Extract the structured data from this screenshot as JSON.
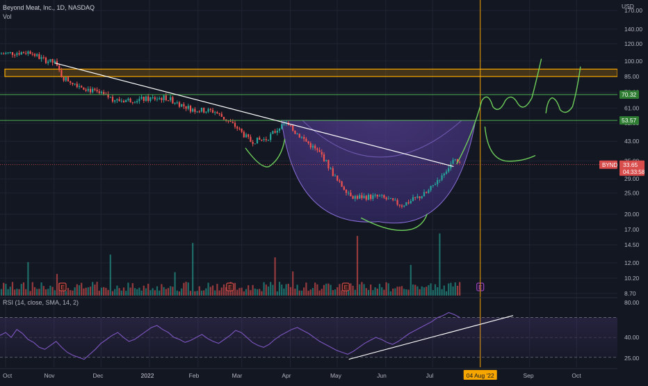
{
  "header": {
    "symbol_line": "Beyond Meat, Inc., 1D, NASDAQ",
    "volume_label": "Vol",
    "rsi_label": "RSI (14, close, SMA, 14, 2)"
  },
  "price_axis": {
    "currency": "USD",
    "ticks": [
      "170.00",
      "140.00",
      "120.00",
      "100.00",
      "85.00",
      "72.00",
      "61.00",
      "52.00",
      "43.00",
      "35.00",
      "29.00",
      "25.00",
      "20.00",
      "17.00",
      "14.50",
      "12.00",
      "10.20",
      "8.70"
    ]
  },
  "rsi_axis": {
    "ticks": [
      "80.00",
      "40.00",
      "25.00"
    ]
  },
  "badges": {
    "resistance_upper": "70.32",
    "resistance_lower": "53.57",
    "ticker": "BYND",
    "last_price": "33.65",
    "countdown": "04:33:58"
  },
  "time_axis": {
    "labels": [
      "Oct",
      "Nov",
      "Dec",
      "2022",
      "Feb",
      "Mar",
      "Apr",
      "May",
      "Jun",
      "Jul",
      "Sep",
      "Oct"
    ],
    "cursor_label": "04 Aug '22"
  },
  "markers": {
    "earnings": "E"
  },
  "colors": {
    "background": "#131722",
    "up": "#26a69a",
    "down": "#ef5350",
    "zone": "#f7a600",
    "support_line": "#4caf50",
    "trendline": "#ffffff",
    "cup_fill": "#6a4bb5",
    "drawing": "#6ecf5a",
    "cursor": "#f7a600",
    "rsi_line": "#7e57c2"
  },
  "chart_data": {
    "type": "candlestick",
    "title": "Beyond Meat, Inc., 1D, NASDAQ",
    "y_scale": "log",
    "ylim": [
      8.5,
      190
    ],
    "x": [
      "Oct",
      "Nov",
      "Dec",
      "2022",
      "Feb",
      "Mar",
      "Apr",
      "May",
      "Jun",
      "Jul",
      "Aug",
      "Sep",
      "Oct"
    ],
    "price_path": [
      [
        "2021-10-01",
        108
      ],
      [
        "2021-10-20",
        110
      ],
      [
        "2021-10-28",
        102
      ],
      [
        "2021-11-05",
        98
      ],
      [
        "2021-11-10",
        84
      ],
      [
        "2021-11-20",
        78
      ],
      [
        "2021-12-01",
        72
      ],
      [
        "2021-12-15",
        66
      ],
      [
        "2022-01-01",
        67
      ],
      [
        "2022-01-15",
        68
      ],
      [
        "2022-02-01",
        60
      ],
      [
        "2022-02-15",
        59
      ],
      [
        "2022-03-01",
        50
      ],
      [
        "2022-03-10",
        43
      ],
      [
        "2022-03-20",
        44
      ],
      [
        "2022-04-01",
        52
      ],
      [
        "2022-04-10",
        46
      ],
      [
        "2022-04-25",
        37
      ],
      [
        "2022-05-05",
        28
      ],
      [
        "2022-05-15",
        24
      ],
      [
        "2022-06-01",
        24
      ],
      [
        "2022-06-15",
        22
      ],
      [
        "2022-07-01",
        25
      ],
      [
        "2022-07-10",
        30
      ],
      [
        "2022-07-18",
        35
      ],
      [
        "2022-07-22",
        33.65
      ]
    ],
    "last_price": 33.65,
    "horizontal_levels": [
      70.32,
      53.57,
      33.65
    ],
    "resistance_zone": [
      85,
      96
    ],
    "trendline": [
      [
        "2021-11-05",
        98
      ],
      [
        "2022-07-18",
        33
      ]
    ],
    "rsi": {
      "ylim": [
        20,
        90
      ],
      "levels": [
        70,
        30
      ],
      "values": [
        52,
        55,
        50,
        58,
        54,
        48,
        45,
        40,
        38,
        42,
        46,
        40,
        35,
        32,
        30,
        28,
        33,
        38,
        44,
        48,
        52,
        55,
        50,
        46,
        48,
        52,
        56,
        60,
        62,
        58,
        55,
        50,
        48,
        45,
        47,
        50,
        53,
        49,
        46,
        44,
        48,
        52,
        57,
        55,
        50,
        45,
        42,
        40,
        43,
        48,
        52,
        55,
        58,
        60,
        57,
        54,
        50,
        46,
        43,
        40,
        37,
        35,
        33,
        36,
        40,
        44,
        47,
        50,
        48,
        45,
        43,
        46,
        50,
        54,
        57,
        60,
        63,
        66,
        70,
        72,
        75,
        73,
        70
      ]
    },
    "annotations": {
      "cursor_date": "04 Aug '22"
    }
  }
}
